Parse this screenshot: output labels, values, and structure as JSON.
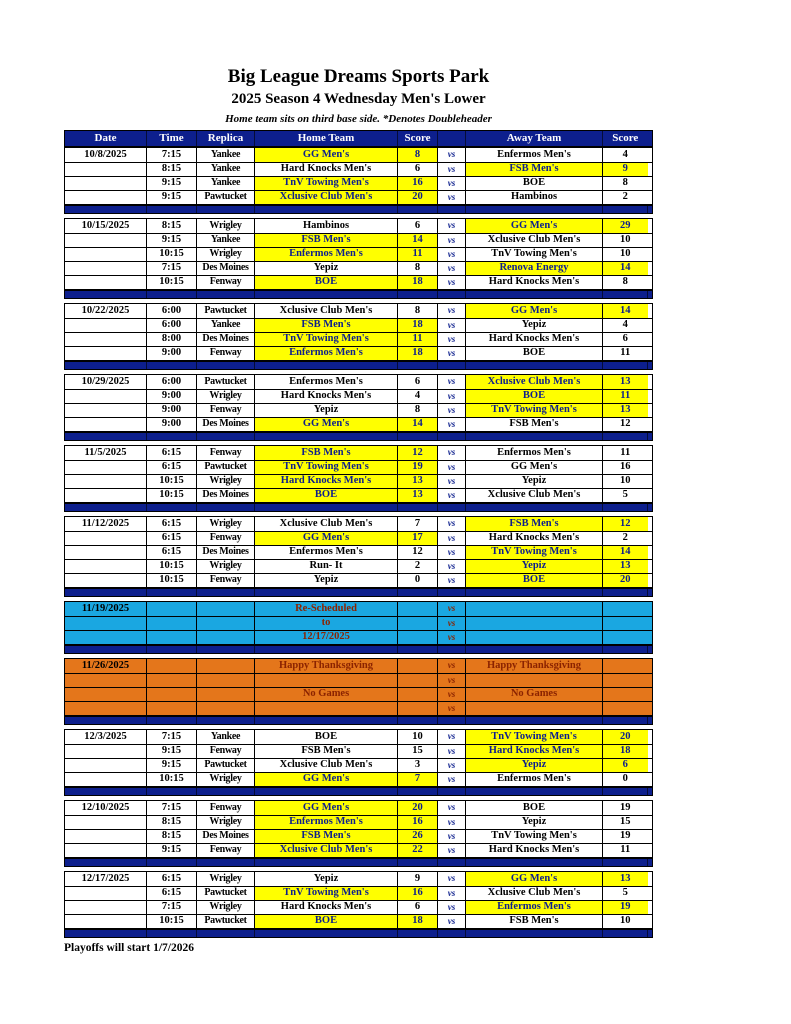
{
  "header": {
    "title": "Big League Dreams Sports Park",
    "subtitle": "2025 Season 4 Wednesday Men's Lower",
    "note": "Home team sits on third base side.  *Denotes Doubleheader"
  },
  "columns": [
    "Date",
    "Time",
    "Replica",
    "Home Team",
    "Score",
    "",
    "Away Team",
    "Score"
  ],
  "vs_label": "vs",
  "footer": "Playoffs will start 1/7/2026",
  "colors": {
    "navy": "#0d1f8d",
    "winner_yellow": "#ffff00",
    "notice_cyan": "#1aa7e1",
    "notice_orange": "#e4761b",
    "notice_text_maroon": "#8b2300",
    "header_text": "#ffffff"
  },
  "blocks": [
    {
      "type": "games",
      "date": "10/8/2025",
      "rows": [
        {
          "time": "7:15",
          "replica": "Yankee",
          "home": "GG Men's",
          "home_score": "8",
          "home_win": true,
          "away": "Enfermos Men's",
          "away_score": "4",
          "away_win": false
        },
        {
          "time": "8:15",
          "replica": "Yankee",
          "home": "Hard Knocks Men's",
          "home_score": "6",
          "home_win": false,
          "away": "FSB Men's",
          "away_score": "9",
          "away_win": true
        },
        {
          "time": "9:15",
          "replica": "Yankee",
          "home": "TnV Towing Men's",
          "home_score": "16",
          "home_win": true,
          "away": "BOE",
          "away_score": "8",
          "away_win": false
        },
        {
          "time": "9:15",
          "replica": "Pawtucket",
          "home": "Xclusive Club Men's",
          "home_score": "20",
          "home_win": true,
          "away": "Hambinos",
          "away_score": "2",
          "away_win": false
        }
      ]
    },
    {
      "type": "games",
      "date": "10/15/2025",
      "rows": [
        {
          "time": "8:15",
          "replica": "Wrigley",
          "home": "Hambinos",
          "home_score": "6",
          "home_win": false,
          "away": "GG Men's",
          "away_score": "29",
          "away_win": true
        },
        {
          "time": "9:15",
          "replica": "Yankee",
          "home": "FSB Men's",
          "home_score": "14",
          "home_win": true,
          "away": "Xclusive Club Men's",
          "away_score": "10",
          "away_win": false
        },
        {
          "time": "10:15",
          "replica": "Wrigley",
          "home": "Enfermos Men's",
          "home_score": "11",
          "home_win": true,
          "away": "TnV Towing Men's",
          "away_score": "10",
          "away_win": false
        },
        {
          "time": "7:15",
          "replica": "Des Moines",
          "home": "Yepiz",
          "home_score": "8",
          "home_win": false,
          "away": "Renova Energy",
          "away_score": "14",
          "away_win": true
        },
        {
          "time": "10:15",
          "replica": "Fenway",
          "home": "BOE",
          "home_score": "18",
          "home_win": true,
          "away": "Hard Knocks Men's",
          "away_score": "8",
          "away_win": false
        }
      ]
    },
    {
      "type": "games",
      "date": "10/22/2025",
      "rows": [
        {
          "time": "6:00",
          "replica": "Pawtucket",
          "home": "Xclusive Club Men's",
          "home_score": "8",
          "home_win": false,
          "away": "GG Men's",
          "away_score": "14",
          "away_win": true
        },
        {
          "time": "6:00",
          "replica": "Yankee",
          "home": "FSB Men's",
          "home_score": "18",
          "home_win": true,
          "away": "Yepiz",
          "away_score": "4",
          "away_win": false
        },
        {
          "time": "8:00",
          "replica": "Des Moines",
          "home": "TnV Towing Men's",
          "home_score": "11",
          "home_win": true,
          "away": "Hard Knocks Men's",
          "away_score": "6",
          "away_win": false
        },
        {
          "time": "9:00",
          "replica": "Fenway",
          "home": "Enfermos Men's",
          "home_score": "18",
          "home_win": true,
          "away": "BOE",
          "away_score": "11",
          "away_win": false
        }
      ]
    },
    {
      "type": "games",
      "date": "10/29/2025",
      "rows": [
        {
          "time": "6:00",
          "replica": "Pawtucket",
          "home": "Enfermos Men's",
          "home_score": "6",
          "home_win": false,
          "away": "Xclusive Club Men's",
          "away_score": "13",
          "away_win": true
        },
        {
          "time": "9:00",
          "replica": "Wrigley",
          "home": "Hard Knocks Men's",
          "home_score": "4",
          "home_win": false,
          "away": "BOE",
          "away_score": "11",
          "away_win": true
        },
        {
          "time": "9:00",
          "replica": "Fenway",
          "home": "Yepiz",
          "home_score": "8",
          "home_win": false,
          "away": "TnV Towing Men's",
          "away_score": "13",
          "away_win": true
        },
        {
          "time": "9:00",
          "replica": "Des Moines",
          "home": "GG Men's",
          "home_score": "14",
          "home_win": true,
          "away": "FSB Men's",
          "away_score": "12",
          "away_win": false
        }
      ]
    },
    {
      "type": "games",
      "date": "11/5/2025",
      "rows": [
        {
          "time": "6:15",
          "replica": "Fenway",
          "home": "FSB Men's",
          "home_score": "12",
          "home_win": true,
          "away": "Enfermos Men's",
          "away_score": "11",
          "away_win": false
        },
        {
          "time": "6:15",
          "replica": "Pawtucket",
          "home": "TnV Towing Men's",
          "home_score": "19",
          "home_win": true,
          "away": "GG Men's",
          "away_score": "16",
          "away_win": false
        },
        {
          "time": "10:15",
          "replica": "Wrigley",
          "home": "Hard Knocks Men's",
          "home_score": "13",
          "home_win": true,
          "away": "Yepiz",
          "away_score": "10",
          "away_win": false
        },
        {
          "time": "10:15",
          "replica": "Des Moines",
          "home": "BOE",
          "home_score": "13",
          "home_win": true,
          "away": "Xclusive Club Men's",
          "away_score": "5",
          "away_win": false
        }
      ]
    },
    {
      "type": "games",
      "date": "11/12/2025",
      "rows": [
        {
          "time": "6:15",
          "replica": "Wrigley",
          "home": "Xclusive Club Men's",
          "home_score": "7",
          "home_win": false,
          "away": "FSB Men's",
          "away_score": "12",
          "away_win": true
        },
        {
          "time": "6:15",
          "replica": "Fenway",
          "home": "GG Men's",
          "home_score": "17",
          "home_win": true,
          "away": "Hard Knocks Men's",
          "away_score": "2",
          "away_win": false
        },
        {
          "time": "6:15",
          "replica": "Des Moines",
          "home": "Enfermos Men's",
          "home_score": "12",
          "home_win": false,
          "away": "TnV Towing Men's",
          "away_score": "14",
          "away_win": true
        },
        {
          "time": "10:15",
          "replica": "Wrigley",
          "home": "Run- It",
          "home_score": "2",
          "home_win": false,
          "away": "Yepiz",
          "away_score": "13",
          "away_win": true
        },
        {
          "time": "10:15",
          "replica": "Fenway",
          "home": "Yepiz",
          "home_score": "0",
          "home_win": false,
          "away": "BOE",
          "away_score": "20",
          "away_win": true
        }
      ]
    },
    {
      "type": "notice",
      "style": "cyan",
      "date": "11/19/2025",
      "rows": [
        {
          "home": "Re-Scheduled",
          "away": ""
        },
        {
          "home": "to",
          "away": ""
        },
        {
          "home": "12/17/2025",
          "away": ""
        }
      ]
    },
    {
      "type": "notice",
      "style": "orange",
      "date": "11/26/2025",
      "rows": [
        {
          "home": "Happy Thanksgiving",
          "away": "Happy Thanksgiving"
        },
        {
          "home": "",
          "away": ""
        },
        {
          "home": "No Games",
          "away": "No Games"
        },
        {
          "home": "",
          "away": ""
        }
      ]
    },
    {
      "type": "games",
      "date": "12/3/2025",
      "rows": [
        {
          "time": "7:15",
          "replica": "Yankee",
          "home": "BOE",
          "home_score": "10",
          "home_win": false,
          "away": "TnV Towing Men's",
          "away_score": "20",
          "away_win": true
        },
        {
          "time": "9:15",
          "replica": "Fenway",
          "home": "FSB Men's",
          "home_score": "15",
          "home_win": false,
          "away": "Hard Knocks Men's",
          "away_score": "18",
          "away_win": true
        },
        {
          "time": "9:15",
          "replica": "Pawtucket",
          "home": "Xclusive Club Men's",
          "home_score": "3",
          "home_win": false,
          "away": "Yepiz",
          "away_score": "6",
          "away_win": true
        },
        {
          "time": "10:15",
          "replica": "Wrigley",
          "home": "GG Men's",
          "home_score": "7",
          "home_win": true,
          "away": "Enfermos Men's",
          "away_score": "0",
          "away_win": false
        }
      ]
    },
    {
      "type": "games",
      "date": "12/10/2025",
      "rows": [
        {
          "time": "7:15",
          "replica": "Fenway",
          "home": "GG Men's",
          "home_score": "20",
          "home_win": true,
          "away": "BOE",
          "away_score": "19",
          "away_win": false
        },
        {
          "time": "8:15",
          "replica": "Wrigley",
          "home": "Enfermos Men's",
          "home_score": "16",
          "home_win": true,
          "away": "Yepiz",
          "away_score": "15",
          "away_win": false
        },
        {
          "time": "8:15",
          "replica": "Des Moines",
          "home": "FSB Men's",
          "home_score": "26",
          "home_win": true,
          "away": "TnV Towing Men's",
          "away_score": "19",
          "away_win": false
        },
        {
          "time": "9:15",
          "replica": "Fenway",
          "home": "Xclusive Club Men's",
          "home_score": "22",
          "home_win": true,
          "away": "Hard Knocks Men's",
          "away_score": "11",
          "away_win": false
        }
      ]
    },
    {
      "type": "games",
      "date": "12/17/2025",
      "rows": [
        {
          "time": "6:15",
          "replica": "Wrigley",
          "home": "Yepiz",
          "home_score": "9",
          "home_win": false,
          "away": "GG Men's",
          "away_score": "13",
          "away_win": true
        },
        {
          "time": "6:15",
          "replica": "Pawtucket",
          "home": "TnV Towing Men's",
          "home_score": "16",
          "home_win": true,
          "away": "Xclusive Club Men's",
          "away_score": "5",
          "away_win": false
        },
        {
          "time": "7:15",
          "replica": "Wrigley",
          "home": "Hard Knocks Men's",
          "home_score": "6",
          "home_win": false,
          "away": "Enfermos Men's",
          "away_score": "19",
          "away_win": true
        },
        {
          "time": "10:15",
          "replica": "Pawtucket",
          "home": "BOE",
          "home_score": "18",
          "home_win": true,
          "away": "FSB Men's",
          "away_score": "10",
          "away_win": false
        }
      ]
    }
  ]
}
